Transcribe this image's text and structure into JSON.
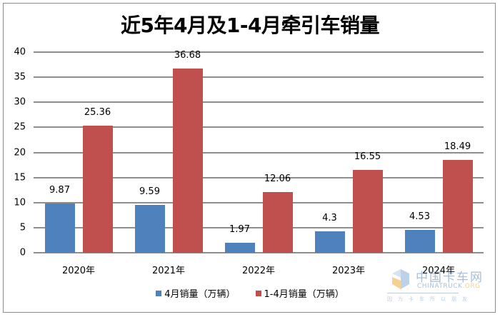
{
  "chart_data": {
    "type": "bar",
    "title": "近5年4月及1-4月牵引车销量",
    "categories": [
      "2020年",
      "2021年",
      "2022年",
      "2023年",
      "2024年"
    ],
    "series": [
      {
        "name": "4月销量（万辆）",
        "color": "#4f81bd",
        "values": [
          9.87,
          9.59,
          1.97,
          4.3,
          4.53
        ]
      },
      {
        "name": "1-4月销量（万辆）",
        "color": "#c0504d",
        "values": [
          25.36,
          36.68,
          12.06,
          16.55,
          18.49
        ]
      }
    ],
    "xlabel": "",
    "ylabel": "",
    "ylim": [
      0,
      40
    ],
    "yticks": [
      0,
      5,
      10,
      15,
      20,
      25,
      30,
      35,
      40
    ],
    "grid": true,
    "legend_position": "bottom",
    "data_labels": true
  },
  "watermark": {
    "cn": "中国卡车网",
    "en_main": "CHINATRUCK",
    "en_suffix": ".ORG",
    "slogan": "因为卡车所以朋友"
  }
}
